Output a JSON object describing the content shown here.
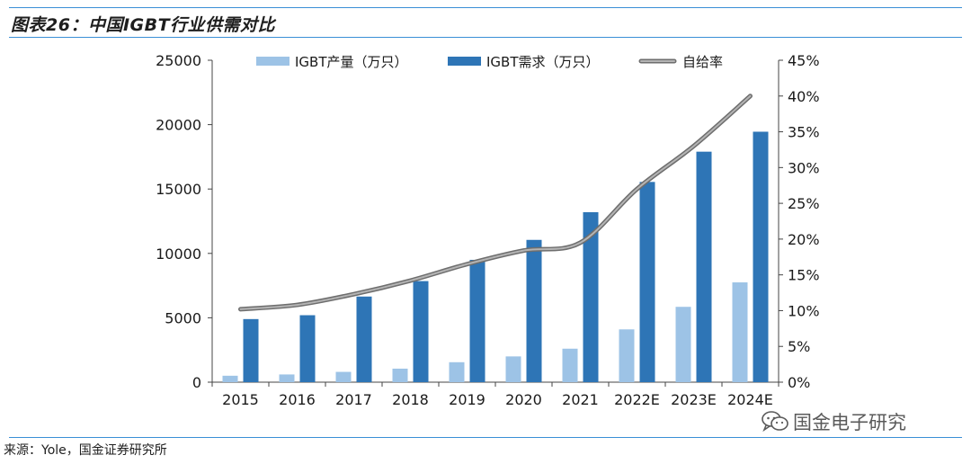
{
  "figure": {
    "title": "图表26：中国IGBT行业供需对比",
    "source": "来源：Yole，国金证券研究所",
    "watermark": "国金电子研究",
    "watermark_icon": "wechat-icon"
  },
  "chart_data": {
    "type": "bar",
    "categories": [
      "2015",
      "2016",
      "2017",
      "2018",
      "2019",
      "2020",
      "2021",
      "2022E",
      "2023E",
      "2024E"
    ],
    "series": [
      {
        "name": "IGBT产量（万只）",
        "type": "bar",
        "color": "#9dc3e6",
        "values": [
          500,
          600,
          800,
          1050,
          1550,
          2000,
          2600,
          4100,
          5850,
          7750
        ]
      },
      {
        "name": "IGBT需求（万只）",
        "type": "bar",
        "color": "#2e75b6",
        "values": [
          4900,
          5200,
          6650,
          7850,
          9500,
          11050,
          13200,
          15550,
          17900,
          19450
        ]
      },
      {
        "name": "自给率",
        "type": "line",
        "axis": "right",
        "color": "#8c8c8c",
        "values": [
          10.2,
          10.8,
          12.3,
          14.2,
          16.5,
          18.4,
          19.5,
          27.0,
          33.0,
          40.0
        ]
      }
    ],
    "y_left": {
      "min": 0,
      "max": 25000,
      "ticks": [
        "0",
        "5000",
        "10000",
        "15000",
        "20000",
        "25000"
      ]
    },
    "y_right": {
      "min": 0,
      "max": 45,
      "unit": "%",
      "ticks": [
        "0%",
        "5%",
        "10%",
        "15%",
        "20%",
        "25%",
        "30%",
        "35%",
        "40%",
        "45%"
      ]
    },
    "legend_position": "top",
    "grid": false
  }
}
